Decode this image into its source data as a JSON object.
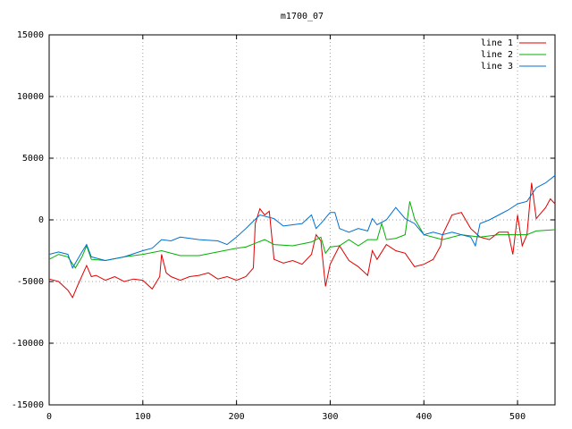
{
  "chart_data": {
    "type": "line",
    "title": "m1700_07",
    "xlim": [
      0,
      540
    ],
    "xticks": [
      0,
      100,
      200,
      300,
      400,
      500
    ],
    "ylim": [
      -15000,
      15000
    ],
    "yticks": [
      -15000,
      -10000,
      -5000,
      0,
      5000,
      10000,
      15000
    ],
    "grid": true,
    "legend": "top-right",
    "series": [
      {
        "name": "line 1",
        "color": "#e00000",
        "x": [
          0,
          10,
          20,
          25,
          30,
          40,
          45,
          50,
          60,
          70,
          80,
          90,
          100,
          110,
          118,
          120,
          125,
          130,
          140,
          150,
          160,
          170,
          180,
          190,
          200,
          210,
          218,
          220,
          225,
          230,
          235,
          240,
          250,
          260,
          270,
          280,
          285,
          290,
          295,
          300,
          310,
          320,
          330,
          340,
          345,
          350,
          360,
          370,
          380,
          390,
          400,
          410,
          418,
          420,
          430,
          440,
          450,
          460,
          470,
          480,
          490,
          495,
          500,
          505,
          510,
          515,
          520,
          530,
          535,
          540
        ],
        "values": [
          -4800,
          -5000,
          -5700,
          -6300,
          -5400,
          -3700,
          -4600,
          -4500,
          -4900,
          -4600,
          -5000,
          -4800,
          -4900,
          -5600,
          -4600,
          -2800,
          -4300,
          -4600,
          -4900,
          -4600,
          -4500,
          -4300,
          -4800,
          -4600,
          -4900,
          -4600,
          -3900,
          -300,
          900,
          400,
          700,
          -3200,
          -3500,
          -3300,
          -3600,
          -2800,
          -1200,
          -1700,
          -5400,
          -3600,
          -2100,
          -3300,
          -3800,
          -4500,
          -2500,
          -3200,
          -2000,
          -2500,
          -2700,
          -3800,
          -3600,
          -3200,
          -2100,
          -1200,
          400,
          600,
          -700,
          -1400,
          -1600,
          -1000,
          -1000,
          -2800,
          400,
          -2100,
          -1200,
          3000,
          100,
          1000,
          1700,
          1300
        ]
      },
      {
        "name": "line 2",
        "color": "#00b000",
        "x": [
          0,
          10,
          20,
          28,
          35,
          40,
          45,
          60,
          80,
          100,
          120,
          140,
          160,
          180,
          200,
          210,
          220,
          230,
          240,
          260,
          280,
          290,
          295,
          300,
          310,
          320,
          330,
          340,
          350,
          355,
          360,
          370,
          380,
          385,
          390,
          400,
          420,
          440,
          460,
          480,
          500,
          510,
          520,
          540
        ],
        "values": [
          -3200,
          -2800,
          -3000,
          -3900,
          -3000,
          -2100,
          -3200,
          -3300,
          -3000,
          -2800,
          -2500,
          -2900,
          -2900,
          -2600,
          -2300,
          -2200,
          -1900,
          -1600,
          -2000,
          -2100,
          -1800,
          -1400,
          -2700,
          -2200,
          -2100,
          -1600,
          -2100,
          -1600,
          -1600,
          -300,
          -1600,
          -1500,
          -1200,
          1500,
          100,
          -1200,
          -1600,
          -1200,
          -1400,
          -1200,
          -1200,
          -1200,
          -900,
          -800
        ]
      },
      {
        "name": "line 3",
        "color": "#0070d0",
        "x": [
          0,
          10,
          20,
          25,
          35,
          40,
          45,
          60,
          80,
          100,
          110,
          120,
          130,
          140,
          160,
          180,
          190,
          200,
          210,
          218,
          225,
          240,
          250,
          270,
          280,
          285,
          290,
          300,
          305,
          310,
          320,
          330,
          340,
          345,
          350,
          360,
          370,
          380,
          390,
          400,
          410,
          420,
          430,
          440,
          450,
          455,
          460,
          470,
          480,
          490,
          500,
          510,
          520,
          530,
          540
        ],
        "values": [
          -2800,
          -2600,
          -2800,
          -3900,
          -2600,
          -2000,
          -3000,
          -3300,
          -3000,
          -2500,
          -2300,
          -1600,
          -1700,
          -1400,
          -1600,
          -1700,
          -2000,
          -1400,
          -700,
          -100,
          400,
          100,
          -500,
          -300,
          400,
          -700,
          -300,
          600,
          600,
          -700,
          -1000,
          -700,
          -900,
          100,
          -400,
          0,
          1000,
          100,
          -300,
          -1200,
          -1000,
          -1200,
          -1000,
          -1200,
          -1400,
          -2100,
          -300,
          0,
          400,
          800,
          1300,
          1500,
          2600,
          3000,
          3600
        ]
      }
    ]
  }
}
